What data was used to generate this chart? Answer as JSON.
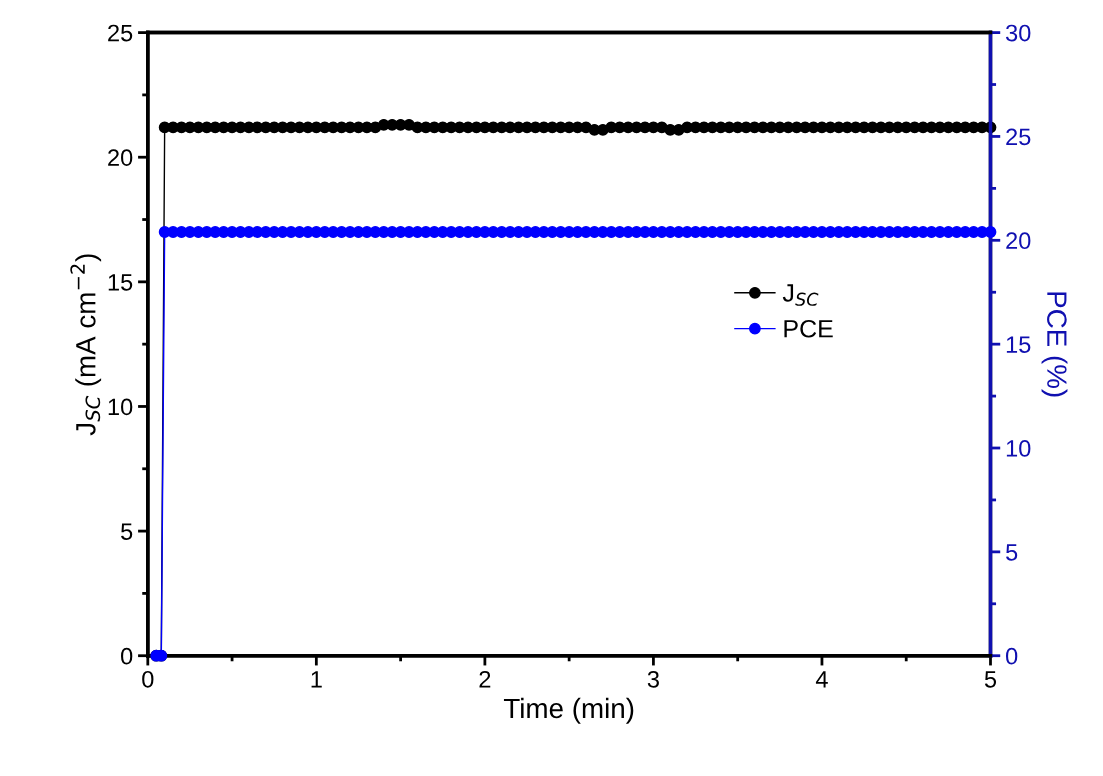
{
  "chart_data": {
    "type": "line",
    "xlabel": "Time (min)",
    "ylabel": "J$_{SC}$ (mA cm$^{−2}$)",
    "y2label": "PCE (%)",
    "x": [
      0.05,
      0.08,
      0.1,
      0.15,
      0.2,
      0.25,
      0.3,
      0.35,
      0.4,
      0.45,
      0.5,
      0.55,
      0.6,
      0.65,
      0.7,
      0.75,
      0.8,
      0.85,
      0.9,
      0.95,
      1.0,
      1.05,
      1.1,
      1.15,
      1.2,
      1.25,
      1.3,
      1.35,
      1.4,
      1.45,
      1.5,
      1.55,
      1.6,
      1.65,
      1.7,
      1.75,
      1.8,
      1.85,
      1.9,
      1.95,
      2.0,
      2.05,
      2.1,
      2.15,
      2.2,
      2.25,
      2.3,
      2.35,
      2.4,
      2.45,
      2.5,
      2.55,
      2.6,
      2.65,
      2.7,
      2.75,
      2.8,
      2.85,
      2.9,
      2.95,
      3.0,
      3.05,
      3.1,
      3.15,
      3.2,
      3.25,
      3.3,
      3.35,
      3.4,
      3.45,
      3.5,
      3.55,
      3.6,
      3.65,
      3.7,
      3.75,
      3.8,
      3.85,
      3.9,
      3.95,
      4.0,
      4.05,
      4.1,
      4.15,
      4.2,
      4.25,
      4.3,
      4.35,
      4.4,
      4.45,
      4.5,
      4.55,
      4.6,
      4.65,
      4.7,
      4.75,
      4.8,
      4.85,
      4.9,
      4.95,
      5.0
    ],
    "series": [
      {
        "name": "J$_{SC}$",
        "color": "#000000",
        "values": [
          0,
          0,
          21.2,
          21.2,
          21.2,
          21.2,
          21.2,
          21.2,
          21.2,
          21.2,
          21.2,
          21.2,
          21.2,
          21.2,
          21.2,
          21.2,
          21.2,
          21.2,
          21.2,
          21.2,
          21.2,
          21.2,
          21.2,
          21.2,
          21.2,
          21.2,
          21.2,
          21.2,
          21.3,
          21.3,
          21.3,
          21.3,
          21.2,
          21.2,
          21.2,
          21.2,
          21.2,
          21.2,
          21.2,
          21.2,
          21.2,
          21.2,
          21.2,
          21.2,
          21.2,
          21.2,
          21.2,
          21.2,
          21.2,
          21.2,
          21.2,
          21.2,
          21.2,
          21.1,
          21.1,
          21.2,
          21.2,
          21.2,
          21.2,
          21.2,
          21.2,
          21.2,
          21.1,
          21.1,
          21.2,
          21.2,
          21.2,
          21.2,
          21.2,
          21.2,
          21.2,
          21.2,
          21.2,
          21.2,
          21.2,
          21.2,
          21.2,
          21.2,
          21.2,
          21.2,
          21.2,
          21.2,
          21.2,
          21.2,
          21.2,
          21.2,
          21.2,
          21.2,
          21.2,
          21.2,
          21.2,
          21.2,
          21.2,
          21.2,
          21.2,
          21.2,
          21.2,
          21.2,
          21.2,
          21.2,
          21.2
        ]
      },
      {
        "name": "PCE",
        "color": "#0000ff",
        "axis": "y2",
        "values": [
          0,
          0,
          20.4,
          20.4,
          20.4,
          20.4,
          20.4,
          20.4,
          20.4,
          20.4,
          20.4,
          20.4,
          20.4,
          20.4,
          20.4,
          20.4,
          20.4,
          20.4,
          20.4,
          20.4,
          20.4,
          20.4,
          20.4,
          20.4,
          20.4,
          20.4,
          20.4,
          20.4,
          20.4,
          20.4,
          20.4,
          20.4,
          20.4,
          20.4,
          20.4,
          20.4,
          20.4,
          20.4,
          20.4,
          20.4,
          20.4,
          20.4,
          20.4,
          20.4,
          20.4,
          20.4,
          20.4,
          20.4,
          20.4,
          20.4,
          20.4,
          20.4,
          20.4,
          20.4,
          20.4,
          20.4,
          20.4,
          20.4,
          20.4,
          20.4,
          20.4,
          20.4,
          20.4,
          20.4,
          20.4,
          20.4,
          20.4,
          20.4,
          20.4,
          20.4,
          20.4,
          20.4,
          20.4,
          20.4,
          20.4,
          20.4,
          20.4,
          20.4,
          20.4,
          20.4,
          20.4,
          20.4,
          20.4,
          20.4,
          20.4,
          20.4,
          20.4,
          20.4,
          20.4,
          20.4,
          20.4,
          20.4,
          20.4,
          20.4,
          20.4,
          20.4,
          20.4,
          20.4,
          20.4,
          20.4,
          20.4
        ]
      }
    ],
    "xlim": [
      0,
      5
    ],
    "xticks": [
      0,
      1,
      2,
      3,
      4,
      5
    ],
    "ylim": [
      0,
      25
    ],
    "yticks": [
      0,
      5,
      10,
      15,
      20,
      25
    ],
    "y2lim": [
      0,
      30
    ],
    "y2ticks": [
      0,
      5,
      10,
      15,
      20,
      25,
      30
    ],
    "marker": "circle",
    "line_style": "solid",
    "grid": false,
    "legend": "right"
  }
}
